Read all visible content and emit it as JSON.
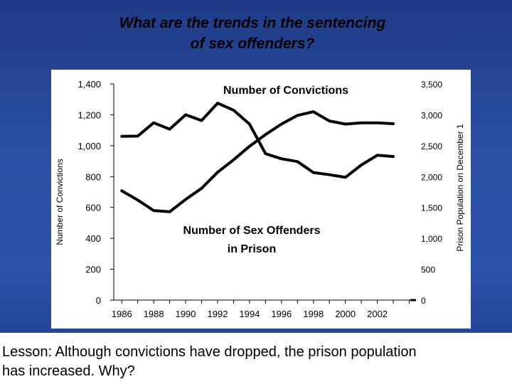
{
  "slide": {
    "title_line1": "What are the trends in the sentencing",
    "title_line2": "of sex offenders?",
    "lesson_line1": "Lesson:  Although convictions have dropped, the prison population",
    "lesson_line2": "has increased.  Why?"
  },
  "colors": {
    "background": "#2a4fa3",
    "panel": "#ffffff",
    "series": "#000000"
  },
  "chart_data": {
    "type": "line",
    "title": "",
    "annotations": [
      "Number of Convictions",
      "Number of Sex Offenders in Prison"
    ],
    "annotation_lines": {
      "convictions": [
        "Number of Convictions"
      ],
      "prison": [
        "Number of Sex Offenders",
        "in Prison"
      ]
    },
    "y_left_label": "Number of Convictions",
    "y_right_label": "Prison Population on December 1",
    "y_left_lim": [
      0,
      1400
    ],
    "y_right_lim": [
      0,
      3500
    ],
    "y_left_ticks": [
      "0",
      "200",
      "400",
      "600",
      "800",
      "1,000",
      "1,200",
      "1,400"
    ],
    "y_right_ticks": [
      "0",
      "500",
      "1,000",
      "1,500",
      "2,000",
      "2,500",
      "3,000",
      "3,500"
    ],
    "x_lim": [
      1985.5,
      2004.2
    ],
    "x_tick_labels": [
      "1986",
      "1988",
      "1990",
      "1992",
      "1994",
      "1996",
      "1998",
      "2000",
      "2002"
    ],
    "grid": false,
    "series": [
      {
        "key": "convictions",
        "axis": "left",
        "x": [
          1986,
          1987,
          1988,
          1989,
          1990,
          1991,
          1992,
          1993,
          1994,
          1995,
          1996,
          1997,
          1998,
          1999,
          2000,
          2001,
          2002,
          2003
        ],
        "values": [
          1060,
          1062,
          1148,
          1107,
          1200,
          1163,
          1275,
          1230,
          1140,
          948,
          915,
          897,
          826,
          812,
          795,
          875,
          938,
          930
        ]
      },
      {
        "key": "prison",
        "axis": "right",
        "x": [
          1986,
          1987,
          1988,
          1989,
          1990,
          1991,
          1992,
          1993,
          1994,
          1995,
          1996,
          1997,
          1998,
          1999,
          2000,
          2001,
          2002,
          2003
        ],
        "values": [
          1770,
          1620,
          1450,
          1430,
          1630,
          1810,
          2070,
          2270,
          2490,
          2680,
          2850,
          2990,
          3050,
          2900,
          2850,
          2870,
          2870,
          2855
        ]
      }
    ]
  }
}
